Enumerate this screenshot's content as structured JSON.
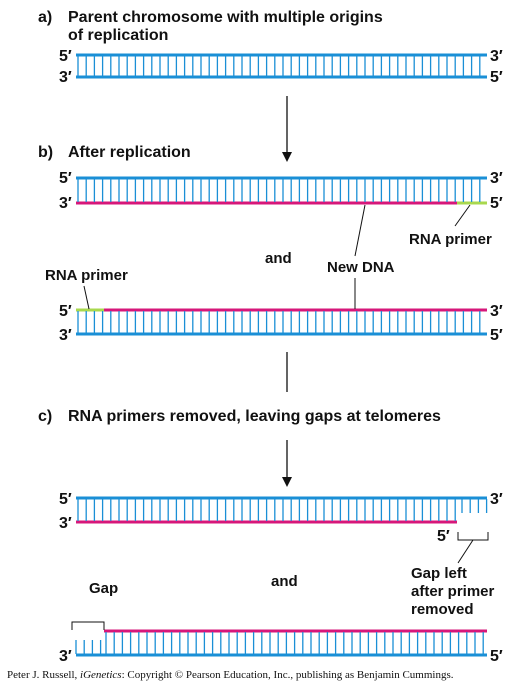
{
  "colors": {
    "parent_strand": "#1a8fd6",
    "new_strand": "#d6177a",
    "rna_primer": "#a8d84e",
    "rung": "#1a8fd6",
    "text": "#111111"
  },
  "sections": {
    "a": {
      "letter": "a)",
      "title_line1": "Parent chromosome with multiple origins",
      "title_line2": "of replication"
    },
    "b": {
      "letter": "b)",
      "title": "After replication"
    },
    "c": {
      "letter": "c)",
      "title": "RNA primers removed, leaving gaps at telomeres"
    }
  },
  "end_labels": {
    "five_prime": "5′",
    "three_prime": "3′"
  },
  "labels": {
    "and_1": "and",
    "and_2": "and",
    "rna_primer_1": "RNA primer",
    "rna_primer_2": "RNA primer",
    "new_dna": "New DNA",
    "gap": "Gap",
    "gap_left_line1": "Gap left",
    "gap_left_line2": "after primer",
    "gap_left_line3": "removed"
  },
  "credit": {
    "prefix": "Peter J. Russell, ",
    "title": "iGenetics",
    "suffix": ": Copyright © Pearson Education, Inc., publishing as Benjamin Cummings."
  }
}
